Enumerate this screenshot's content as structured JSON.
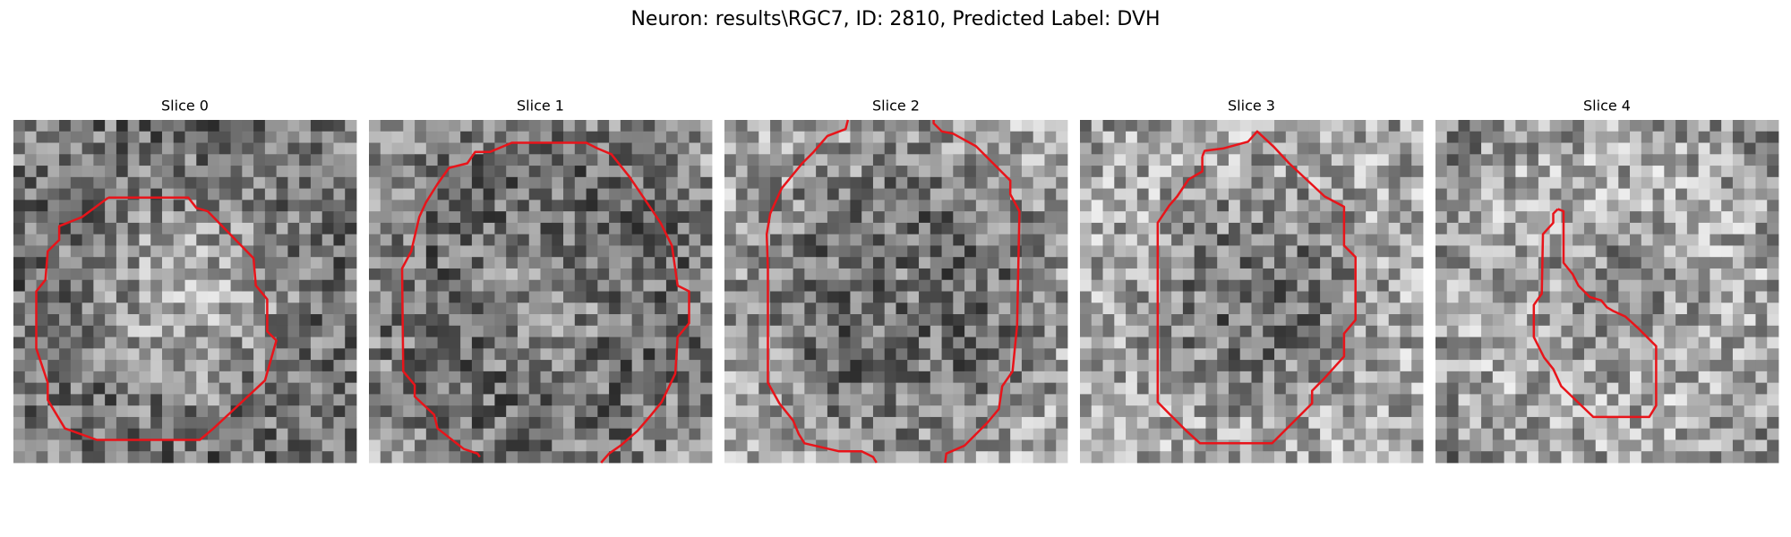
{
  "title": "Neuron: results\\RGC7, ID: 2810, Predicted Label: DVH",
  "panels": [
    {
      "title": "Slice 0"
    },
    {
      "title": "Slice 1"
    },
    {
      "title": "Slice 2"
    },
    {
      "title": "Slice 3"
    },
    {
      "title": "Slice 4"
    }
  ]
}
